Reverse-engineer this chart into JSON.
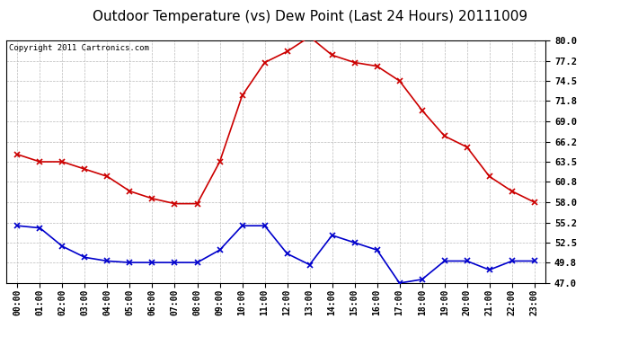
{
  "title": "Outdoor Temperature (vs) Dew Point (Last 24 Hours) 20111009",
  "copyright_text": "Copyright 2011 Cartronics.com",
  "hours": [
    "00:00",
    "01:00",
    "02:00",
    "03:00",
    "04:00",
    "05:00",
    "06:00",
    "07:00",
    "08:00",
    "09:00",
    "10:00",
    "11:00",
    "12:00",
    "13:00",
    "14:00",
    "15:00",
    "16:00",
    "17:00",
    "18:00",
    "19:00",
    "20:00",
    "21:00",
    "22:00",
    "23:00"
  ],
  "temp_red": [
    64.5,
    63.5,
    63.5,
    62.5,
    61.5,
    59.5,
    58.5,
    57.8,
    57.8,
    63.5,
    72.5,
    77.0,
    78.5,
    80.5,
    78.0,
    77.0,
    76.5,
    74.5,
    70.5,
    67.0,
    65.5,
    61.5,
    59.5,
    58.0
  ],
  "dew_blue": [
    54.8,
    54.5,
    52.0,
    50.5,
    50.0,
    49.8,
    49.8,
    49.8,
    49.8,
    51.5,
    54.8,
    54.8,
    51.0,
    49.5,
    53.5,
    52.5,
    51.5,
    47.0,
    47.5,
    50.0,
    50.0,
    48.8,
    50.0,
    50.0
  ],
  "ylim": [
    47.0,
    80.0
  ],
  "yticks": [
    47.0,
    49.8,
    52.5,
    55.2,
    58.0,
    60.8,
    63.5,
    66.2,
    69.0,
    71.8,
    74.5,
    77.2,
    80.0
  ],
  "red_color": "#cc0000",
  "blue_color": "#0000cc",
  "bg_color": "#ffffff",
  "plot_bg_color": "#ffffff",
  "grid_color": "#bbbbbb",
  "title_fontsize": 11,
  "copyright_fontsize": 6.5
}
